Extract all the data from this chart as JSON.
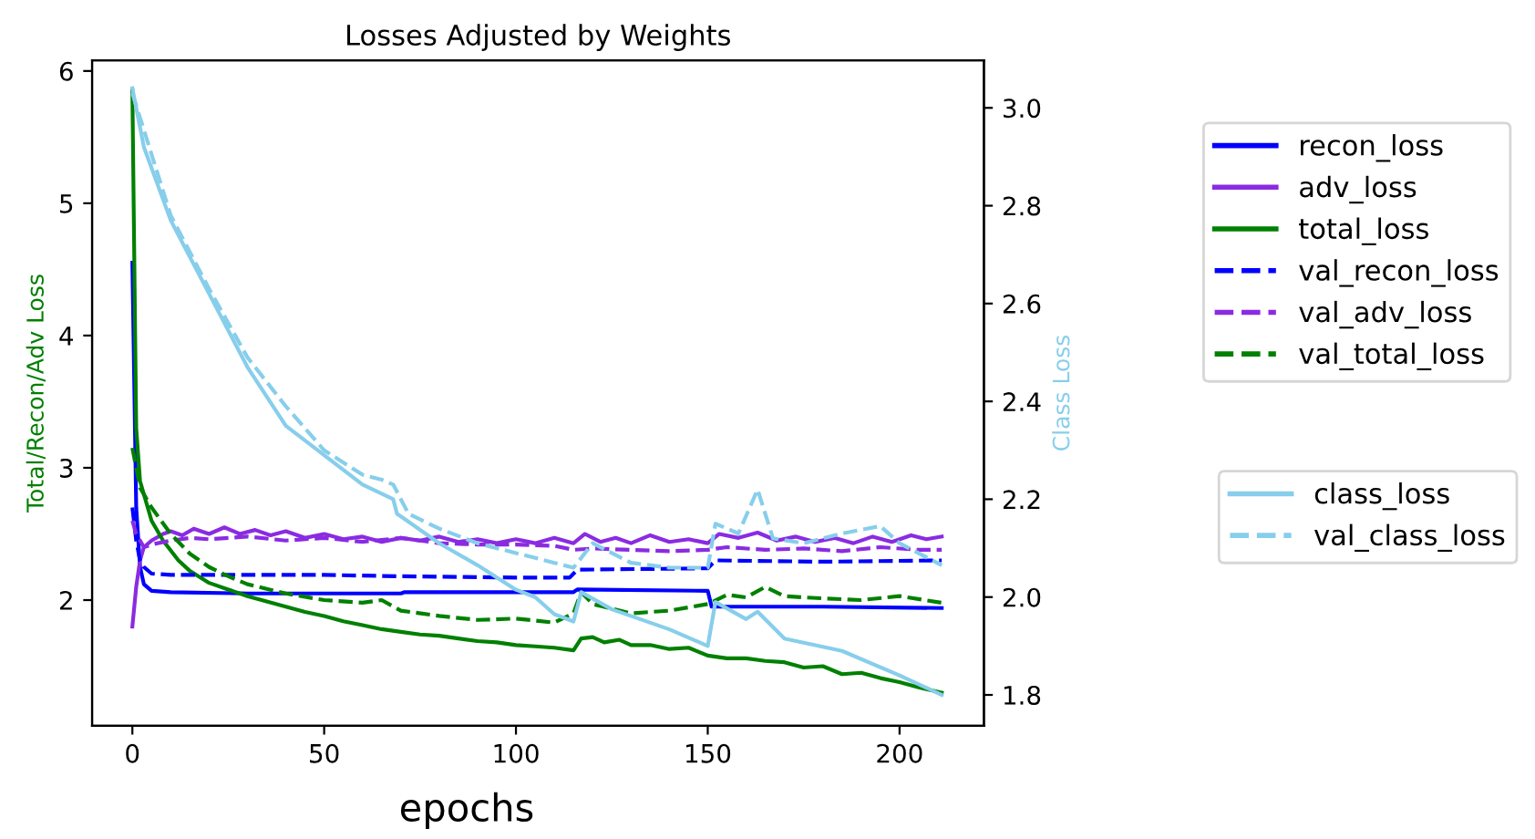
{
  "chart_data": {
    "type": "line",
    "title": "Losses Adjusted by Weights",
    "xlabel": "epochs",
    "ylabel": "Total/Recon/Adv Loss",
    "y2label": "Class Loss",
    "xlim": [
      -10.5,
      222
    ],
    "xticks": [
      0,
      50,
      100,
      150,
      200
    ],
    "ylim": [
      1.05,
      6.08
    ],
    "yticks": [
      2,
      3,
      4,
      5,
      6
    ],
    "y2lim": [
      1.737,
      3.097
    ],
    "y2ticks": [
      1.8,
      {
        "value": 2,
        "label": "2.0"
      },
      2.2,
      2.4,
      2.6,
      2.8,
      {
        "value": 3,
        "label": "3.0"
      }
    ],
    "legend": "right",
    "grid": false,
    "line_style": "solid",
    "series": [
      {
        "name": "recon_loss",
        "color": "#0000ff",
        "x": [
          0,
          1,
          2,
          3,
          5,
          10,
          30,
          50,
          70,
          71,
          100,
          115,
          116,
          150,
          151,
          180,
          211
        ],
        "values": [
          4.55,
          2.7,
          2.25,
          2.12,
          2.07,
          2.06,
          2.05,
          2.05,
          2.05,
          2.06,
          2.06,
          2.06,
          2.08,
          2.07,
          1.95,
          1.95,
          1.94
        ]
      },
      {
        "name": "adv_loss",
        "color": "#8a2be2",
        "x": [
          0,
          1,
          2,
          3,
          5,
          8,
          10,
          13,
          16,
          20,
          24,
          28,
          32,
          36,
          40,
          45,
          50,
          55,
          60,
          65,
          70,
          75,
          80,
          85,
          90,
          95,
          100,
          105,
          110,
          115,
          118,
          122,
          126,
          130,
          135,
          140,
          145,
          150,
          153,
          158,
          163,
          168,
          173,
          178,
          183,
          188,
          193,
          198,
          203,
          207,
          211
        ],
        "values": [
          1.8,
          2.1,
          2.3,
          2.4,
          2.45,
          2.5,
          2.52,
          2.49,
          2.54,
          2.5,
          2.55,
          2.5,
          2.53,
          2.49,
          2.52,
          2.47,
          2.5,
          2.46,
          2.48,
          2.44,
          2.47,
          2.45,
          2.48,
          2.44,
          2.46,
          2.43,
          2.46,
          2.43,
          2.47,
          2.43,
          2.5,
          2.44,
          2.47,
          2.43,
          2.49,
          2.44,
          2.46,
          2.43,
          2.5,
          2.47,
          2.51,
          2.45,
          2.48,
          2.44,
          2.47,
          2.43,
          2.48,
          2.44,
          2.49,
          2.46,
          2.48
        ]
      },
      {
        "name": "total_loss",
        "color": "#008000",
        "x": [
          0,
          1,
          2,
          3,
          5,
          8,
          12,
          15,
          20,
          25,
          30,
          35,
          40,
          45,
          50,
          55,
          60,
          65,
          70,
          75,
          80,
          85,
          90,
          95,
          100,
          105,
          110,
          115,
          117,
          120,
          123,
          127,
          130,
          135,
          140,
          145,
          150,
          155,
          160,
          165,
          170,
          175,
          180,
          185,
          190,
          195,
          200,
          205,
          211
        ],
        "values": [
          5.85,
          3.3,
          2.9,
          2.8,
          2.6,
          2.45,
          2.3,
          2.22,
          2.13,
          2.08,
          2.03,
          1.99,
          1.95,
          1.91,
          1.88,
          1.84,
          1.81,
          1.78,
          1.76,
          1.74,
          1.73,
          1.71,
          1.69,
          1.68,
          1.66,
          1.65,
          1.64,
          1.62,
          1.71,
          1.72,
          1.68,
          1.7,
          1.66,
          1.66,
          1.63,
          1.64,
          1.58,
          1.56,
          1.56,
          1.54,
          1.53,
          1.49,
          1.5,
          1.44,
          1.45,
          1.41,
          1.38,
          1.34,
          1.3
        ]
      },
      {
        "name": "val_recon_loss",
        "color": "#0000ff",
        "line_style": "dashed",
        "x": [
          0,
          1,
          2,
          3,
          5,
          10,
          30,
          50,
          70,
          100,
          114,
          116,
          150,
          152,
          180,
          211
        ],
        "values": [
          2.7,
          2.45,
          2.3,
          2.25,
          2.2,
          2.19,
          2.19,
          2.19,
          2.18,
          2.17,
          2.17,
          2.23,
          2.24,
          2.3,
          2.29,
          2.3
        ]
      },
      {
        "name": "val_adv_loss",
        "color": "#8a2be2",
        "line_style": "dashed",
        "x": [
          0,
          1,
          3,
          5,
          10,
          15,
          20,
          30,
          40,
          50,
          60,
          70,
          80,
          90,
          100,
          110,
          115,
          120,
          130,
          140,
          150,
          155,
          165,
          175,
          185,
          195,
          205,
          211
        ],
        "values": [
          2.6,
          2.5,
          2.4,
          2.42,
          2.45,
          2.47,
          2.46,
          2.48,
          2.45,
          2.47,
          2.44,
          2.47,
          2.43,
          2.42,
          2.42,
          2.41,
          2.38,
          2.39,
          2.38,
          2.37,
          2.38,
          2.4,
          2.38,
          2.39,
          2.37,
          2.4,
          2.38,
          2.38
        ]
      },
      {
        "name": "val_total_loss",
        "color": "#008000",
        "line_style": "dashed",
        "x": [
          0,
          2,
          5,
          10,
          15,
          20,
          25,
          30,
          40,
          50,
          60,
          65,
          70,
          80,
          90,
          100,
          110,
          115,
          117,
          120,
          130,
          140,
          150,
          155,
          160,
          165,
          170,
          175,
          190,
          200,
          211
        ],
        "values": [
          3.15,
          2.85,
          2.7,
          2.5,
          2.35,
          2.25,
          2.18,
          2.12,
          2.05,
          2.0,
          1.98,
          2.0,
          1.92,
          1.88,
          1.85,
          1.86,
          1.83,
          1.9,
          2.06,
          1.97,
          1.9,
          1.92,
          1.97,
          2.04,
          2.02,
          2.1,
          2.03,
          2.02,
          2.0,
          2.03,
          1.98
        ]
      },
      {
        "name": "class_loss",
        "color": "#87ceeb",
        "axis": "y2",
        "x": [
          0,
          3,
          10,
          20,
          30,
          40,
          50,
          60,
          68,
          69,
          70,
          80,
          90,
          100,
          105,
          110,
          115,
          117,
          125,
          140,
          150,
          152,
          160,
          163,
          170,
          185,
          200,
          211
        ],
        "values": [
          3.04,
          2.92,
          2.77,
          2.62,
          2.47,
          2.35,
          2.29,
          2.23,
          2.2,
          2.17,
          2.165,
          2.11,
          2.065,
          2.015,
          2.0,
          1.965,
          1.95,
          2.01,
          1.975,
          1.934,
          1.9,
          1.99,
          1.955,
          1.97,
          1.915,
          1.89,
          1.84,
          1.8
        ]
      },
      {
        "name": "val_class_loss",
        "color": "#87ceeb",
        "axis": "y2",
        "line_style": "dashed",
        "x": [
          0,
          10,
          20,
          30,
          40,
          50,
          60,
          65,
          68,
          72,
          80,
          90,
          100,
          110,
          115,
          120,
          130,
          140,
          150,
          152,
          158,
          163,
          167,
          175,
          185,
          195,
          200,
          211
        ],
        "values": [
          3.03,
          2.78,
          2.63,
          2.49,
          2.39,
          2.3,
          2.25,
          2.24,
          2.23,
          2.17,
          2.14,
          2.11,
          2.09,
          2.07,
          2.06,
          2.11,
          2.07,
          2.06,
          2.06,
          2.15,
          2.13,
          2.22,
          2.12,
          2.11,
          2.13,
          2.145,
          2.11,
          2.065
        ]
      }
    ]
  }
}
